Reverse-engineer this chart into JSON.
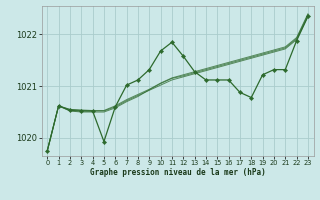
{
  "background_color": "#cce8e8",
  "grid_color": "#aacccc",
  "line_color": "#2d6a2d",
  "xlabel": "Graphe pression niveau de la mer (hPa)",
  "xlim": [
    -0.5,
    23.5
  ],
  "ylim": [
    1019.65,
    1022.55
  ],
  "yticks": [
    1020,
    1021,
    1022
  ],
  "xticks": [
    0,
    1,
    2,
    3,
    4,
    5,
    6,
    7,
    8,
    9,
    10,
    11,
    12,
    13,
    14,
    15,
    16,
    17,
    18,
    19,
    20,
    21,
    22,
    23
  ],
  "series_no_marker": [
    [
      1019.75,
      1020.62,
      1020.55,
      1020.53,
      1020.52,
      1020.52,
      1020.6,
      1020.72,
      1020.82,
      1020.92,
      1021.02,
      1021.12,
      1021.18,
      1021.24,
      1021.3,
      1021.36,
      1021.42,
      1021.48,
      1021.54,
      1021.6,
      1021.66,
      1021.72,
      1021.9,
      1022.35
    ],
    [
      1019.75,
      1020.62,
      1020.52,
      1020.5,
      1020.5,
      1020.5,
      1020.58,
      1020.7,
      1020.8,
      1020.93,
      1021.05,
      1021.15,
      1021.2,
      1021.26,
      1021.32,
      1021.38,
      1021.44,
      1021.5,
      1021.56,
      1021.62,
      1021.68,
      1021.74,
      1021.92,
      1022.38
    ],
    [
      1019.75,
      1020.62,
      1020.55,
      1020.54,
      1020.53,
      1020.53,
      1020.62,
      1020.74,
      1020.84,
      1020.94,
      1021.06,
      1021.16,
      1021.22,
      1021.28,
      1021.34,
      1021.4,
      1021.46,
      1021.52,
      1021.58,
      1021.64,
      1021.7,
      1021.76,
      1021.94,
      1022.4
    ]
  ],
  "series_with_marker": [
    {
      "y": [
        1019.75,
        1020.62,
        1020.53,
        1020.52,
        1020.52,
        1019.93,
        1020.6,
        1021.02,
        1021.12,
        1021.32,
        1021.68,
        1021.85,
        1021.58,
        1021.28,
        1021.12,
        1021.12,
        1021.12,
        1020.88,
        1020.78,
        1021.22,
        1021.32,
        1021.32,
        1021.88,
        1022.35
      ],
      "marker": "D",
      "markersize": 2.2
    }
  ]
}
